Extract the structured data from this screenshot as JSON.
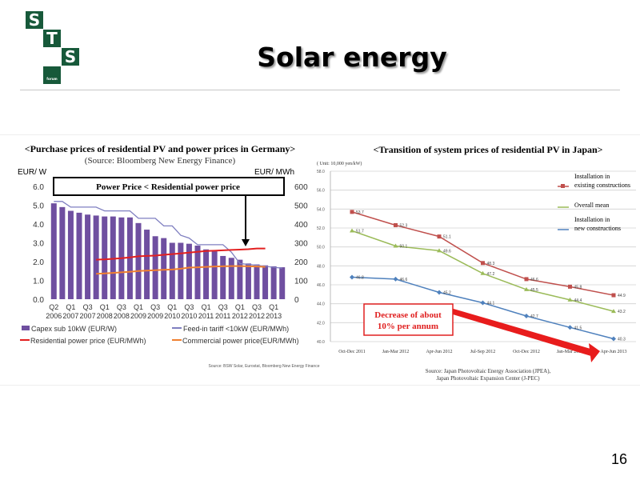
{
  "logo": {
    "letters": [
      "S",
      "T",
      "S"
    ],
    "sub": "forum",
    "color": "#17593a"
  },
  "slide": {
    "title": "Solar energy",
    "page_number": "16"
  },
  "chart_data": [
    {
      "type": "bar",
      "title": "<Purchase prices of residential PV and power prices in Germany>",
      "subtitle": "(Source: Bloomberg New Energy Finance)",
      "ylabel_left": "EUR/ W",
      "ylabel_right": "EUR/ MWh",
      "ylim_left": [
        0,
        6
      ],
      "ylim_right": [
        0,
        600
      ],
      "yticks_left": [
        "0.0",
        "1.0",
        "2.0",
        "3.0",
        "4.0",
        "5.0",
        "6.0"
      ],
      "yticks_right": [
        "0",
        "100",
        "200",
        "300",
        "400",
        "500",
        "600"
      ],
      "x_tick_labels": [
        [
          "Q2",
          "2006"
        ],
        [
          "Q1",
          "2007"
        ],
        [
          "Q3",
          "2007"
        ],
        [
          "Q1",
          "2008"
        ],
        [
          "Q3",
          "2008"
        ],
        [
          "Q1",
          "2009"
        ],
        [
          "Q3",
          "2009"
        ],
        [
          "Q1",
          "2010"
        ],
        [
          "Q3",
          "2010"
        ],
        [
          "Q1",
          "2011"
        ],
        [
          "Q3",
          "2011"
        ],
        [
          "Q1",
          "2012"
        ],
        [
          "Q3",
          "2012"
        ],
        [
          "Q1",
          "2013"
        ]
      ],
      "annotation": "Power Price < Residential power price",
      "footnote": "Source: BSW Solar, Eurostat, Bloomberg New Energy Finance",
      "grid": false,
      "legend_position": "bottom",
      "series": [
        {
          "name": "Capex sub 10kW (EUR/W)",
          "kind": "bar",
          "axis": "left",
          "color": "#6f4fa0",
          "values": [
            5.1,
            4.9,
            4.7,
            4.6,
            4.5,
            4.45,
            4.4,
            4.4,
            4.35,
            4.35,
            4.05,
            3.7,
            3.35,
            3.25,
            3.0,
            3.0,
            2.95,
            2.85,
            2.65,
            2.55,
            2.3,
            2.2,
            2.1,
            1.9,
            1.85,
            1.8,
            1.75,
            1.7
          ]
        },
        {
          "name": "Feed-in tariff <10kW (EUR/MWh)",
          "kind": "line",
          "axis": "right",
          "color": "#7f7fc0",
          "values": [
            520,
            520,
            490,
            490,
            490,
            490,
            470,
            470,
            470,
            470,
            430,
            430,
            430,
            390,
            390,
            340,
            325,
            290,
            290,
            290,
            290,
            250,
            190,
            185,
            180,
            175,
            170,
            165
          ]
        },
        {
          "name": "Residential power price (EUR/MWh)",
          "kind": "line",
          "axis": "right",
          "color": "#e32020",
          "values": [
            null,
            null,
            null,
            null,
            null,
            210,
            212,
            215,
            218,
            222,
            228,
            230,
            232,
            236,
            240,
            244,
            248,
            252,
            256,
            258,
            260,
            262,
            264,
            266,
            270,
            270,
            null,
            null
          ]
        },
        {
          "name": "Commercial power price(EUR/MWh)",
          "kind": "line",
          "axis": "right",
          "color": "#f08030",
          "values": [
            null,
            null,
            null,
            null,
            null,
            135,
            137,
            140,
            143,
            146,
            150,
            152,
            154,
            156,
            158,
            162,
            168,
            170,
            172,
            174,
            175,
            176,
            176,
            175,
            174,
            172,
            null,
            null
          ]
        }
      ]
    },
    {
      "type": "line",
      "title": "<Transition of system prices of residential PV in Japan>",
      "unit": "( Unit: 10,000 yen/kW)",
      "ylim": [
        40,
        58
      ],
      "yticks": [
        "40.0",
        "42.0",
        "44.0",
        "46.0",
        "48.0",
        "50.0",
        "52.0",
        "54.0",
        "56.0",
        "58.0"
      ],
      "categories": [
        "Oct-Dec 2011",
        "Jan-Mar 2012",
        "Apr-Jun 2012",
        "Jul-Sep 2012",
        "Oct-Dec 2012",
        "Jan-Mar 2013",
        "Apr-Jun 2013"
      ],
      "grid": true,
      "legend_position": "right",
      "annotation": "Decrease of about 10% per annum",
      "source": [
        "Source: Japan Photovoltaic Energy Association (JPEA),",
        "Japan Photovoltaic Expansion Center (J-PEC)"
      ],
      "series": [
        {
          "name": "Installation in existing constructions",
          "color": "#c0504d",
          "marker": "square",
          "values": [
            53.7,
            52.3,
            51.1,
            48.3,
            46.6,
            45.8,
            44.9
          ]
        },
        {
          "name": "Overall mean",
          "color": "#9bbb59",
          "marker": "triangle",
          "values": [
            51.7,
            50.1,
            49.6,
            47.2,
            45.5,
            44.4,
            43.2
          ]
        },
        {
          "name": "Installation in new constructions",
          "color": "#4f81bd",
          "marker": "diamond",
          "values": [
            46.8,
            46.6,
            45.2,
            44.1,
            42.7,
            41.5,
            40.3
          ]
        }
      ]
    }
  ]
}
